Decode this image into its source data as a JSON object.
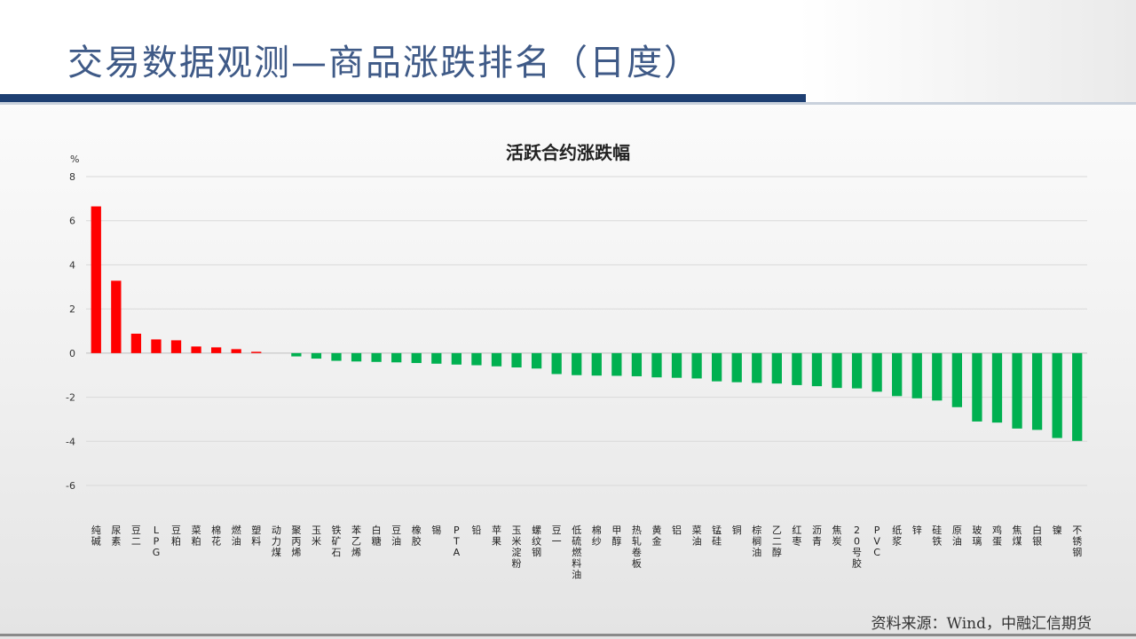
{
  "slide": {
    "title": "交易数据观测—商品涨跌排名（日度）",
    "source": "资料来源：Wind，中融汇信期货"
  },
  "colors": {
    "title": "#3f5a87",
    "accent_bar": "#1e3f72",
    "positive": "#ff0000",
    "negative": "#00b050"
  },
  "chart_data": {
    "type": "bar",
    "title": "活跃合约涨跌幅",
    "ylabel": "%",
    "ylim": [
      -6,
      8
    ],
    "yticks": [
      8,
      6,
      4,
      2,
      0,
      -2,
      -4,
      -6
    ],
    "grid": true,
    "categories": [
      "纯碱",
      "尿素",
      "豆二",
      "LPG",
      "豆粕",
      "菜粕",
      "棉花",
      "燃油",
      "塑料",
      "动力煤",
      "聚丙烯",
      "玉米",
      "铁矿石",
      "苯乙烯",
      "白糖",
      "豆油",
      "橡胶",
      "锡",
      "PTA",
      "铅",
      "苹果",
      "玉米淀粉",
      "螺纹钢",
      "豆一",
      "低硫燃料油",
      "棉纱",
      "甲醇",
      "热轧卷板",
      "黄金",
      "铝",
      "菜油",
      "锰硅",
      "铜",
      "棕榈油",
      "乙二醇",
      "红枣",
      "沥青",
      "焦炭",
      "20号胶",
      "PVC",
      "纸浆",
      "锌",
      "硅铁",
      "原油",
      "玻璃",
      "鸡蛋",
      "焦煤",
      "白银",
      "镍",
      "不锈钢"
    ],
    "values": [
      6.65,
      3.28,
      0.88,
      0.62,
      0.58,
      0.3,
      0.26,
      0.18,
      0.06,
      0,
      -0.15,
      -0.25,
      -0.35,
      -0.38,
      -0.4,
      -0.42,
      -0.45,
      -0.48,
      -0.52,
      -0.55,
      -0.6,
      -0.65,
      -0.7,
      -0.95,
      -1.0,
      -1.02,
      -1.03,
      -1.05,
      -1.1,
      -1.12,
      -1.15,
      -1.28,
      -1.32,
      -1.35,
      -1.38,
      -1.45,
      -1.5,
      -1.58,
      -1.6,
      -1.75,
      -1.95,
      -2.05,
      -2.15,
      -2.45,
      -3.1,
      -3.15,
      -3.42,
      -3.48,
      -3.85,
      -3.98
    ]
  }
}
